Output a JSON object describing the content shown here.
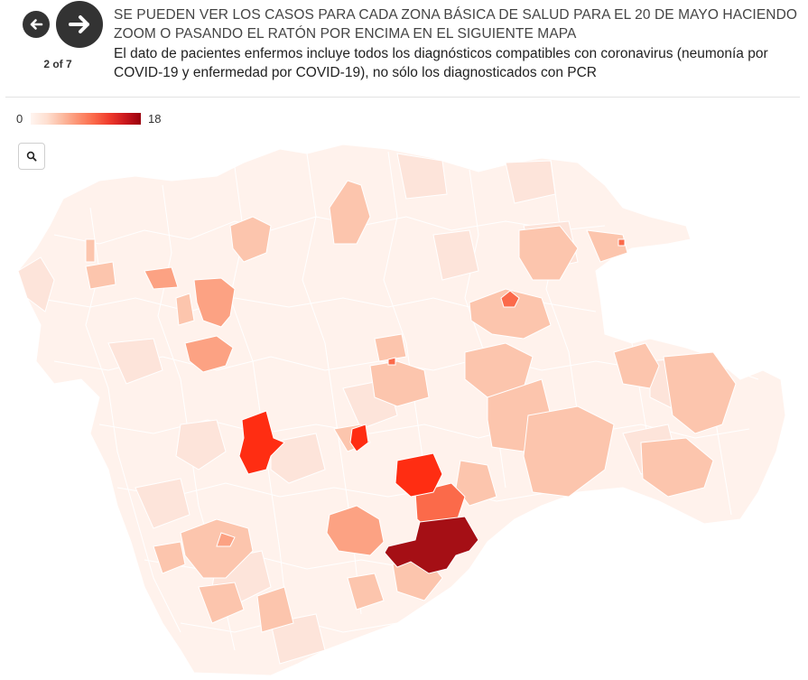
{
  "header": {
    "counter": "2 of 7",
    "title": "SE PUEDEN VER LOS CASOS PARA CADA ZONA BÁSICA DE SALUD PARA EL 20 DE MAYO HACIENDO ZOOM O PASANDO EL RATÓN POR ENCIMA EN EL SIGUIENTE MAPA",
    "subtitle": "El dato de pacientes enfermos incluye todos los diagnósticos compatibles con coronavirus (neumonía por COVID-19 y enfermedad por COVID-19), no sólo los diagnosticados con PCR"
  },
  "nav": {
    "prev_icon": "arrow-left-icon",
    "next_icon": "arrow-right-icon"
  },
  "legend": {
    "min": "0",
    "max": "18"
  },
  "map": {
    "zoom_icon": "search-icon",
    "colors": [
      "#fff5f0",
      "#fde4da",
      "#fcc5ad",
      "#fca283",
      "#fb6a4a",
      "#ff2d12",
      "#a50f15"
    ]
  }
}
